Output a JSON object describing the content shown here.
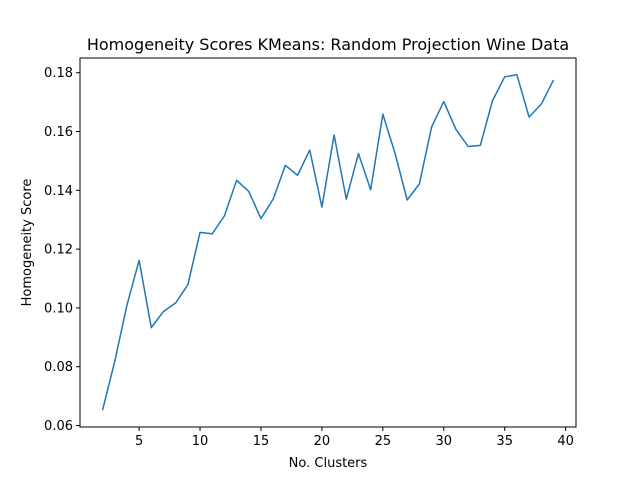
{
  "chart_data": {
    "type": "line",
    "title": "Homogeneity Scores KMeans: Random Projection Wine Data",
    "xlabel": "No. Clusters",
    "ylabel": "Homogeneity Score",
    "x": [
      2,
      3,
      4,
      5,
      6,
      7,
      8,
      9,
      10,
      11,
      12,
      13,
      14,
      15,
      16,
      17,
      18,
      19,
      20,
      21,
      22,
      23,
      24,
      25,
      26,
      27,
      28,
      29,
      30,
      31,
      32,
      33,
      34,
      35,
      36,
      37,
      38,
      39
    ],
    "series": [
      {
        "color": "#1f77b4",
        "values": [
          0.0652,
          0.0818,
          0.1009,
          0.1162,
          0.0933,
          0.0988,
          0.1017,
          0.1079,
          0.1257,
          0.1252,
          0.1313,
          0.1434,
          0.1396,
          0.1304,
          0.137,
          0.1485,
          0.1451,
          0.1537,
          0.1343,
          0.1588,
          0.137,
          0.1525,
          0.1402,
          0.1659,
          0.1526,
          0.1367,
          0.1422,
          0.1615,
          0.1702,
          0.1607,
          0.1549,
          0.1553,
          0.1705,
          0.1786,
          0.1793,
          0.1649,
          0.1693,
          0.1775
        ]
      }
    ],
    "xlim": [
      0.15,
      40.85
    ],
    "ylim": [
      0.0595,
      0.185
    ],
    "xticks": [
      5,
      10,
      15,
      20,
      25,
      30,
      35,
      40
    ],
    "xtick_labels": [
      "5",
      "10",
      "15",
      "20",
      "25",
      "30",
      "35",
      "40"
    ],
    "yticks": [
      0.06,
      0.08,
      0.1,
      0.12,
      0.14,
      0.16,
      0.18
    ],
    "ytick_labels": [
      "0.06",
      "0.08",
      "0.10",
      "0.12",
      "0.14",
      "0.16",
      "0.18"
    ],
    "grid": false,
    "legend": "none"
  }
}
